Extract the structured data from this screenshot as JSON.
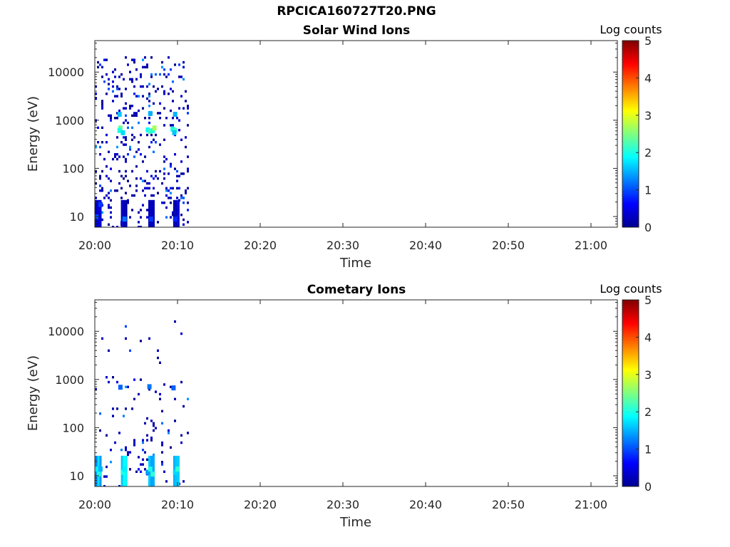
{
  "figure": {
    "title": "RPCICA160727T20.PNG",
    "background": "#ffffff"
  },
  "colormap": "jet",
  "chart_data": [
    {
      "type": "heatmap",
      "title": "Solar Wind Ions",
      "xlabel": "Time",
      "ylabel": "Energy (eV)",
      "x_ticks": [
        "20:00",
        "20:10",
        "20:20",
        "20:30",
        "20:40",
        "20:50",
        "21:00"
      ],
      "y_ticks": [
        "10",
        "100",
        "1000",
        "10000"
      ],
      "y_scale": "log",
      "ylim": [
        6,
        45000
      ],
      "xlim_minutes": [
        0,
        63
      ],
      "colorbar": {
        "label": "Log counts",
        "ticks": [
          "0",
          "1",
          "2",
          "3",
          "4",
          "5"
        ],
        "range": [
          0,
          5
        ]
      },
      "data_extent_minutes": [
        0,
        11.6
      ],
      "bins": [
        {
          "t": 3.0,
          "e": 700,
          "v": 2.4
        },
        {
          "t": 2.9,
          "e": 620,
          "v": 2.0
        },
        {
          "t": 3.3,
          "e": 560,
          "v": 1.7
        },
        {
          "t": 6.3,
          "e": 640,
          "v": 1.9
        },
        {
          "t": 6.6,
          "e": 600,
          "v": 2.2
        },
        {
          "t": 6.9,
          "e": 620,
          "v": 2.0
        },
        {
          "t": 7.1,
          "e": 700,
          "v": 2.7
        },
        {
          "t": 9.3,
          "e": 660,
          "v": 2.0
        },
        {
          "t": 9.6,
          "e": 620,
          "v": 2.2
        },
        {
          "t": 9.5,
          "e": 560,
          "v": 1.6
        },
        {
          "t": 2.9,
          "e": 1350,
          "v": 1.6
        },
        {
          "t": 6.6,
          "e": 1400,
          "v": 1.5
        },
        {
          "t": 9.6,
          "e": 1350,
          "v": 1.5
        },
        {
          "t": 0.1,
          "e": 10,
          "v": 1.0
        },
        {
          "t": 0.6,
          "e": 18,
          "v": 0.9
        },
        {
          "t": 3.5,
          "e": 9,
          "v": 1.2
        },
        {
          "t": 6.7,
          "e": 9,
          "v": 0.9
        },
        {
          "t": 9.6,
          "e": 9,
          "v": 0.8
        }
      ]
    },
    {
      "type": "heatmap",
      "title": "Cometary Ions",
      "xlabel": "Time",
      "ylabel": "Energy (eV)",
      "x_ticks": [
        "20:00",
        "20:10",
        "20:20",
        "20:30",
        "20:40",
        "20:50",
        "21:00"
      ],
      "y_ticks": [
        "10",
        "100",
        "1000",
        "10000"
      ],
      "y_scale": "log",
      "ylim": [
        6,
        45000
      ],
      "xlim_minutes": [
        0,
        63
      ],
      "colorbar": {
        "label": "Log counts",
        "ticks": [
          "0",
          "1",
          "2",
          "3",
          "4",
          "5"
        ],
        "range": [
          0,
          5
        ]
      },
      "data_extent_minutes": [
        0,
        11.6
      ],
      "bins": [
        {
          "t": 0.2,
          "e": 14,
          "v": 1.8
        },
        {
          "t": 0.4,
          "e": 11,
          "v": 2.0
        },
        {
          "t": 0.6,
          "e": 14,
          "v": 1.5
        },
        {
          "t": 3.3,
          "e": 12,
          "v": 2.0
        },
        {
          "t": 3.5,
          "e": 14,
          "v": 1.8
        },
        {
          "t": 6.3,
          "e": 12,
          "v": 1.4
        },
        {
          "t": 6.6,
          "e": 14,
          "v": 2.0
        },
        {
          "t": 6.9,
          "e": 11,
          "v": 2.1
        },
        {
          "t": 9.6,
          "e": 12,
          "v": 1.7
        },
        {
          "t": 9.9,
          "e": 14,
          "v": 2.1
        },
        {
          "t": 3.0,
          "e": 700,
          "v": 1.1
        },
        {
          "t": 6.5,
          "e": 720,
          "v": 1.2
        },
        {
          "t": 9.4,
          "e": 680,
          "v": 1.1
        }
      ]
    }
  ]
}
